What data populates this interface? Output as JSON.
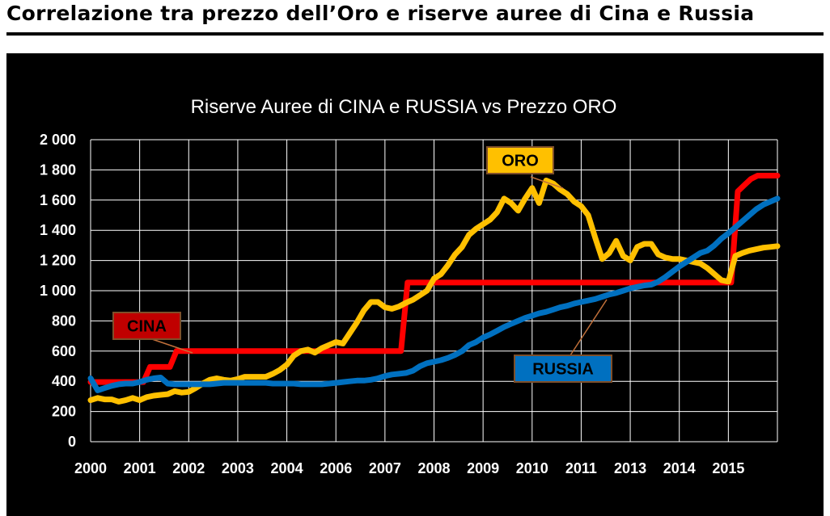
{
  "page": {
    "title": "Correlazione tra prezzo dell’Oro e riserve auree di Cina e Russia"
  },
  "chart_data": {
    "type": "line",
    "title": "Riserve Auree di CINA e RUSSIA vs Prezzo ORO",
    "xlabel": "",
    "ylabel": "",
    "ylim": [
      0,
      2000
    ],
    "yticks": [
      0,
      200,
      400,
      600,
      800,
      1000,
      1200,
      1400,
      1600,
      1800,
      2000
    ],
    "ytick_labels": [
      "0",
      "200",
      "400",
      "600",
      "800",
      "1 000",
      "1 200",
      "1 400",
      "1 600",
      "1 800",
      "2 000"
    ],
    "xtick_labels": [
      "2000",
      "2001",
      "2002",
      "2003",
      "2004",
      "2006",
      "2007",
      "2008",
      "2009",
      "2010",
      "2011",
      "2013",
      "2014",
      "2015"
    ],
    "grid": true,
    "legend": "inline labels",
    "series": [
      {
        "name": "CINA",
        "color": "#ff0000",
        "label_bg": "#c00000",
        "label_fg": "#000000",
        "values": [
          395,
          395,
          395,
          395,
          395,
          395,
          395,
          395,
          395,
          495,
          495,
          495,
          495,
          600,
          600,
          600,
          600,
          600,
          600,
          600,
          600,
          600,
          600,
          600,
          600,
          600,
          600,
          600,
          600,
          600,
          600,
          600,
          600,
          600,
          600,
          600,
          600,
          600,
          600,
          600,
          600,
          600,
          600,
          600,
          600,
          600,
          600,
          600,
          1054,
          1054,
          1054,
          1054,
          1054,
          1054,
          1054,
          1054,
          1054,
          1054,
          1054,
          1054,
          1054,
          1054,
          1054,
          1054,
          1054,
          1054,
          1054,
          1054,
          1054,
          1054,
          1054,
          1054,
          1054,
          1054,
          1054,
          1054,
          1054,
          1054,
          1054,
          1054,
          1054,
          1054,
          1054,
          1054,
          1054,
          1054,
          1054,
          1054,
          1054,
          1054,
          1054,
          1054,
          1054,
          1054,
          1054,
          1054,
          1054,
          1054,
          1658,
          1700,
          1740,
          1762,
          1762,
          1762,
          1762
        ]
      },
      {
        "name": "RUSSIA",
        "color": "#0070c0",
        "label_bg": "#0070c0",
        "label_fg": "#000000",
        "values": [
          420,
          340,
          355,
          370,
          380,
          385,
          385,
          395,
          410,
          420,
          425,
          385,
          380,
          380,
          380,
          380,
          380,
          380,
          385,
          390,
          390,
          390,
          390,
          390,
          390,
          390,
          385,
          385,
          385,
          385,
          380,
          380,
          380,
          380,
          385,
          390,
          395,
          400,
          405,
          405,
          410,
          420,
          435,
          445,
          450,
          455,
          470,
          500,
          520,
          530,
          540,
          555,
          575,
          600,
          640,
          660,
          690,
          710,
          735,
          760,
          780,
          800,
          820,
          835,
          850,
          860,
          875,
          890,
          900,
          915,
          925,
          935,
          945,
          960,
          975,
          985,
          1000,
          1015,
          1025,
          1035,
          1040,
          1060,
          1090,
          1125,
          1160,
          1190,
          1220,
          1250,
          1265,
          1300,
          1345,
          1380,
          1420,
          1460,
          1500,
          1540,
          1570,
          1590,
          1610
        ]
      },
      {
        "name": "ORO",
        "color": "#ffc000",
        "label_bg": "#ffc000",
        "label_fg": "#000000",
        "values": [
          275,
          290,
          280,
          280,
          265,
          275,
          290,
          275,
          295,
          305,
          310,
          315,
          335,
          325,
          330,
          355,
          385,
          410,
          420,
          410,
          405,
          415,
          430,
          430,
          430,
          430,
          450,
          475,
          510,
          570,
          600,
          610,
          590,
          620,
          640,
          660,
          650,
          720,
          790,
          870,
          925,
          925,
          890,
          880,
          895,
          920,
          940,
          970,
          1000,
          1080,
          1110,
          1170,
          1240,
          1290,
          1370,
          1410,
          1440,
          1470,
          1520,
          1610,
          1580,
          1530,
          1610,
          1680,
          1580,
          1730,
          1710,
          1670,
          1640,
          1590,
          1560,
          1500,
          1350,
          1210,
          1250,
          1330,
          1230,
          1200,
          1290,
          1310,
          1310,
          1240,
          1220,
          1210,
          1210,
          1200,
          1190,
          1180,
          1150,
          1110,
          1070,
          1060,
          1230,
          1250,
          1265,
          1275,
          1285,
          1290,
          1295
        ]
      }
    ]
  }
}
